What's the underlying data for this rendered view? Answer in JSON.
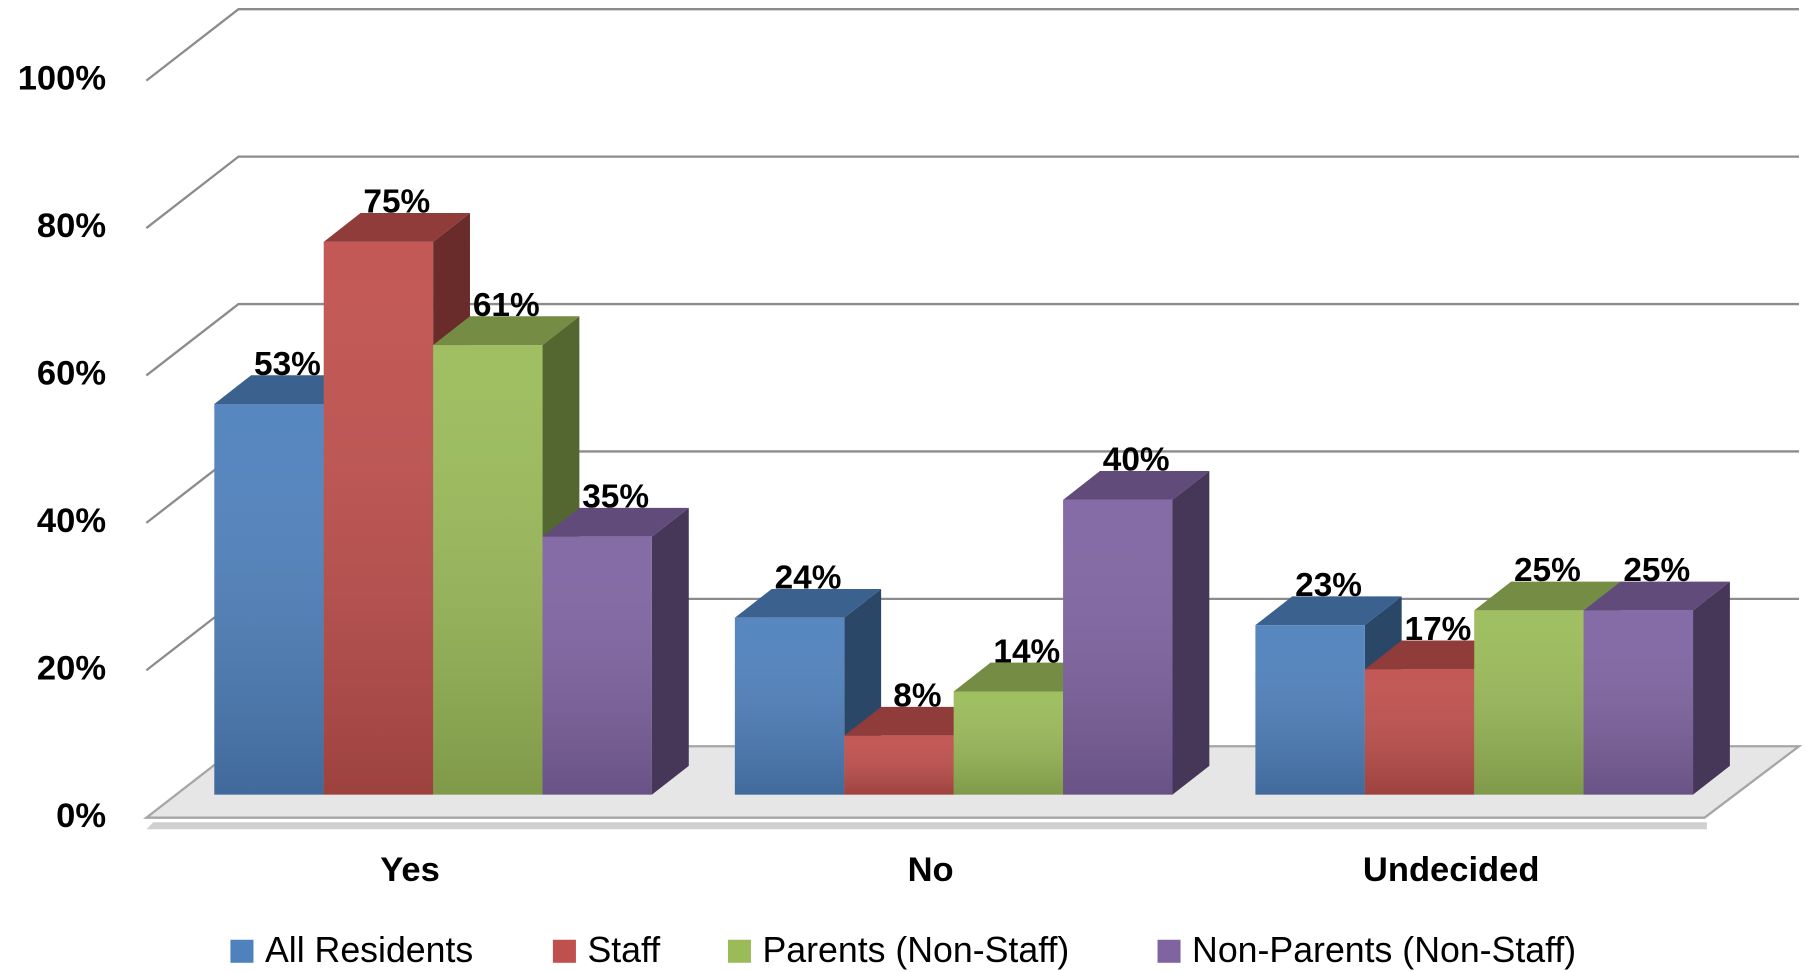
{
  "chart_data": {
    "type": "bar3d",
    "categories": [
      "Yes",
      "No",
      "Undecided"
    ],
    "series": [
      {
        "name": "All Residents",
        "color": "#4f81bd",
        "values": [
          53,
          24,
          23
        ],
        "value_labels": [
          "53%",
          "24%",
          "23%"
        ]
      },
      {
        "name": "Staff",
        "color": "#c0504d",
        "values": [
          75,
          8,
          17
        ],
        "value_labels": [
          "75%",
          "8%",
          "17%"
        ]
      },
      {
        "name": "Parents (Non-Staff)",
        "color": "#9bbb59",
        "values": [
          61,
          14,
          25
        ],
        "value_labels": [
          "61%",
          "14%",
          "25%"
        ]
      },
      {
        "name": "Non-Parents (Non-Staff)",
        "color": "#8064a2",
        "values": [
          35,
          40,
          25
        ],
        "value_labels": [
          "35%",
          "40%",
          "25%"
        ]
      }
    ],
    "ylim": [
      0,
      100
    ],
    "yticks": [
      {
        "value": 0,
        "label": "0%"
      },
      {
        "value": 20,
        "label": "20%"
      },
      {
        "value": 40,
        "label": "40%"
      },
      {
        "value": 60,
        "label": "60%"
      },
      {
        "value": 80,
        "label": "80%"
      },
      {
        "value": 100,
        "label": "100%"
      }
    ],
    "grid": true,
    "legend": "bottom"
  }
}
